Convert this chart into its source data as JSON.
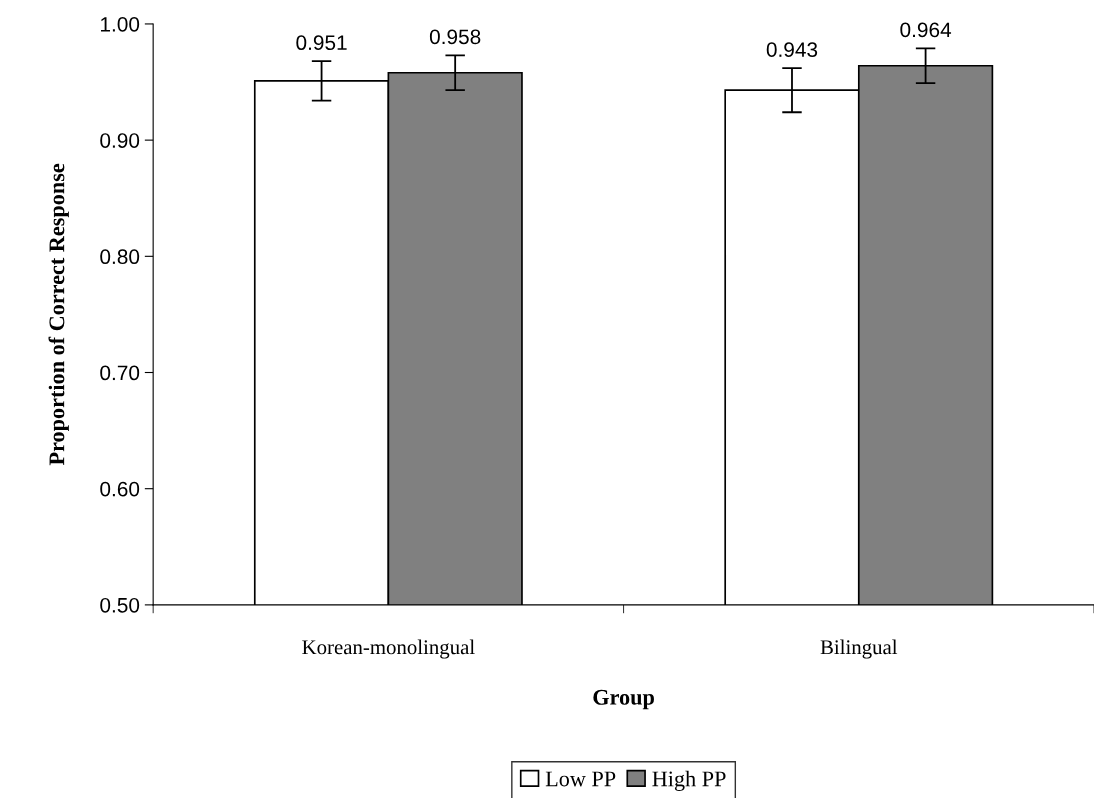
{
  "chart_data": {
    "type": "bar",
    "xlabel": "Group",
    "ylabel": "Proportion of Correct Response",
    "categories": [
      "Korean-monolingual",
      "Bilingual"
    ],
    "series": [
      {
        "name": "Low PP",
        "color": "#ffffff",
        "values": [
          0.951,
          0.943
        ],
        "errors": [
          0.017,
          0.019
        ]
      },
      {
        "name": "High PP",
        "color": "#808080",
        "values": [
          0.958,
          0.964
        ],
        "errors": [
          0.015,
          0.015
        ]
      }
    ],
    "ylim": [
      0.5,
      1.0
    ],
    "yticks": [
      {
        "value": 0.5,
        "label": "0.50"
      },
      {
        "value": 0.6,
        "label": "0.60"
      },
      {
        "value": 0.7,
        "label": "0.70"
      },
      {
        "value": 0.8,
        "label": "0.80"
      },
      {
        "value": 0.9,
        "label": "0.90"
      },
      {
        "value": 1.0,
        "label": "1.00"
      }
    ],
    "data_labels": true,
    "grid": false,
    "legend": "bottom"
  }
}
